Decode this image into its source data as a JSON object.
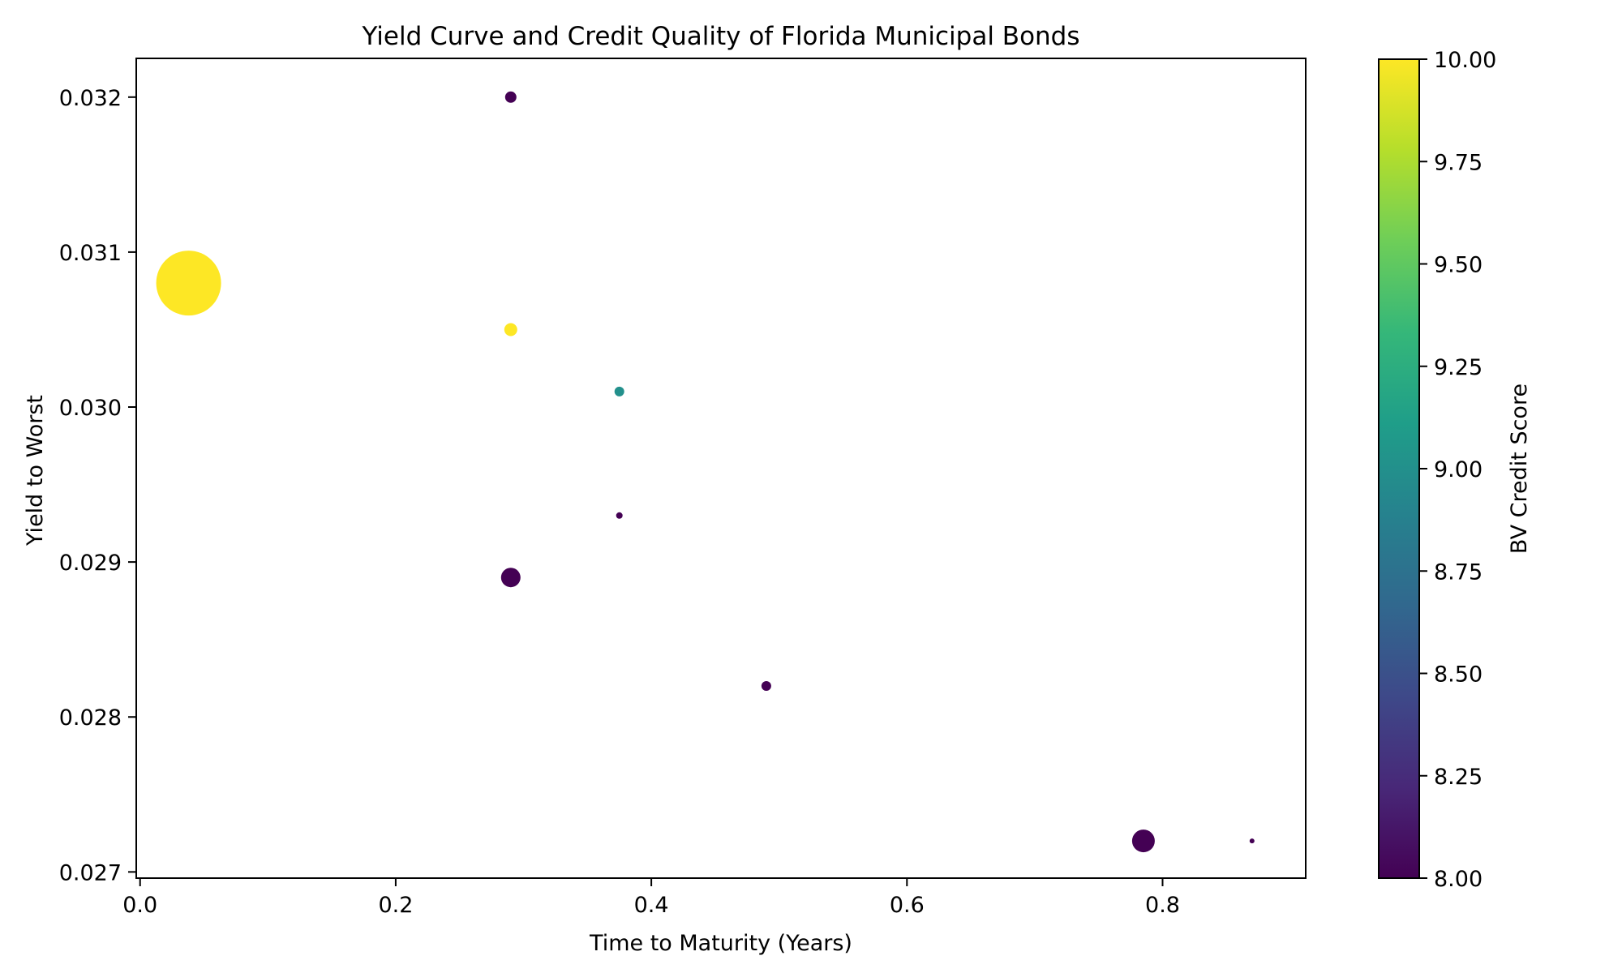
{
  "chart_data": {
    "type": "scatter",
    "title": "Yield Curve and Credit Quality of Florida Municipal Bonds",
    "xlabel": "Time to Maturity (Years)",
    "ylabel": "Yield to Worst",
    "xlim": [
      -0.003,
      0.912
    ],
    "ylim": [
      0.02696,
      0.03225
    ],
    "x_ticks": [
      0.0,
      0.2,
      0.4,
      0.6,
      0.8
    ],
    "x_tick_labels": [
      "0.0",
      "0.2",
      "0.4",
      "0.6",
      "0.8"
    ],
    "y_ticks": [
      0.027,
      0.028,
      0.029,
      0.03,
      0.031,
      0.032
    ],
    "y_tick_labels": [
      "0.027",
      "0.028",
      "0.029",
      "0.030",
      "0.031",
      "0.032"
    ],
    "grid": false,
    "colorbar": {
      "label": "BV Credit Score",
      "colormap": "viridis",
      "range": [
        8.0,
        10.0
      ],
      "ticks": [
        8.0,
        8.25,
        8.5,
        8.75,
        9.0,
        9.25,
        9.5,
        9.75,
        10.0
      ],
      "tick_labels": [
        "8.00",
        "8.25",
        "8.50",
        "8.75",
        "9.00",
        "9.25",
        "9.50",
        "9.75",
        "10.00"
      ]
    },
    "size_encoding": "marker radius (px) proportional to an unlabeled size variable",
    "points": [
      {
        "x": 0.038,
        "y": 0.0308,
        "credit_score": 10.0,
        "radius": 40
      },
      {
        "x": 0.29,
        "y": 0.032,
        "credit_score": 8.0,
        "radius": 7
      },
      {
        "x": 0.29,
        "y": 0.0305,
        "credit_score": 10.0,
        "radius": 8
      },
      {
        "x": 0.375,
        "y": 0.0301,
        "credit_score": 9.0,
        "radius": 6
      },
      {
        "x": 0.375,
        "y": 0.0293,
        "credit_score": 8.0,
        "radius": 4
      },
      {
        "x": 0.29,
        "y": 0.0289,
        "credit_score": 8.0,
        "radius": 12
      },
      {
        "x": 0.49,
        "y": 0.0282,
        "credit_score": 8.0,
        "radius": 6
      },
      {
        "x": 0.785,
        "y": 0.0272,
        "credit_score": 8.0,
        "radius": 14
      },
      {
        "x": 0.87,
        "y": 0.0272,
        "credit_score": 8.0,
        "radius": 3
      }
    ]
  },
  "colors": {
    "viridis_stops": [
      "#440154",
      "#482878",
      "#3e4989",
      "#31688e",
      "#26828e",
      "#1f9e89",
      "#35b779",
      "#6ece58",
      "#b5de2b",
      "#fde725"
    ],
    "axis": "#000000",
    "background": "#ffffff"
  }
}
